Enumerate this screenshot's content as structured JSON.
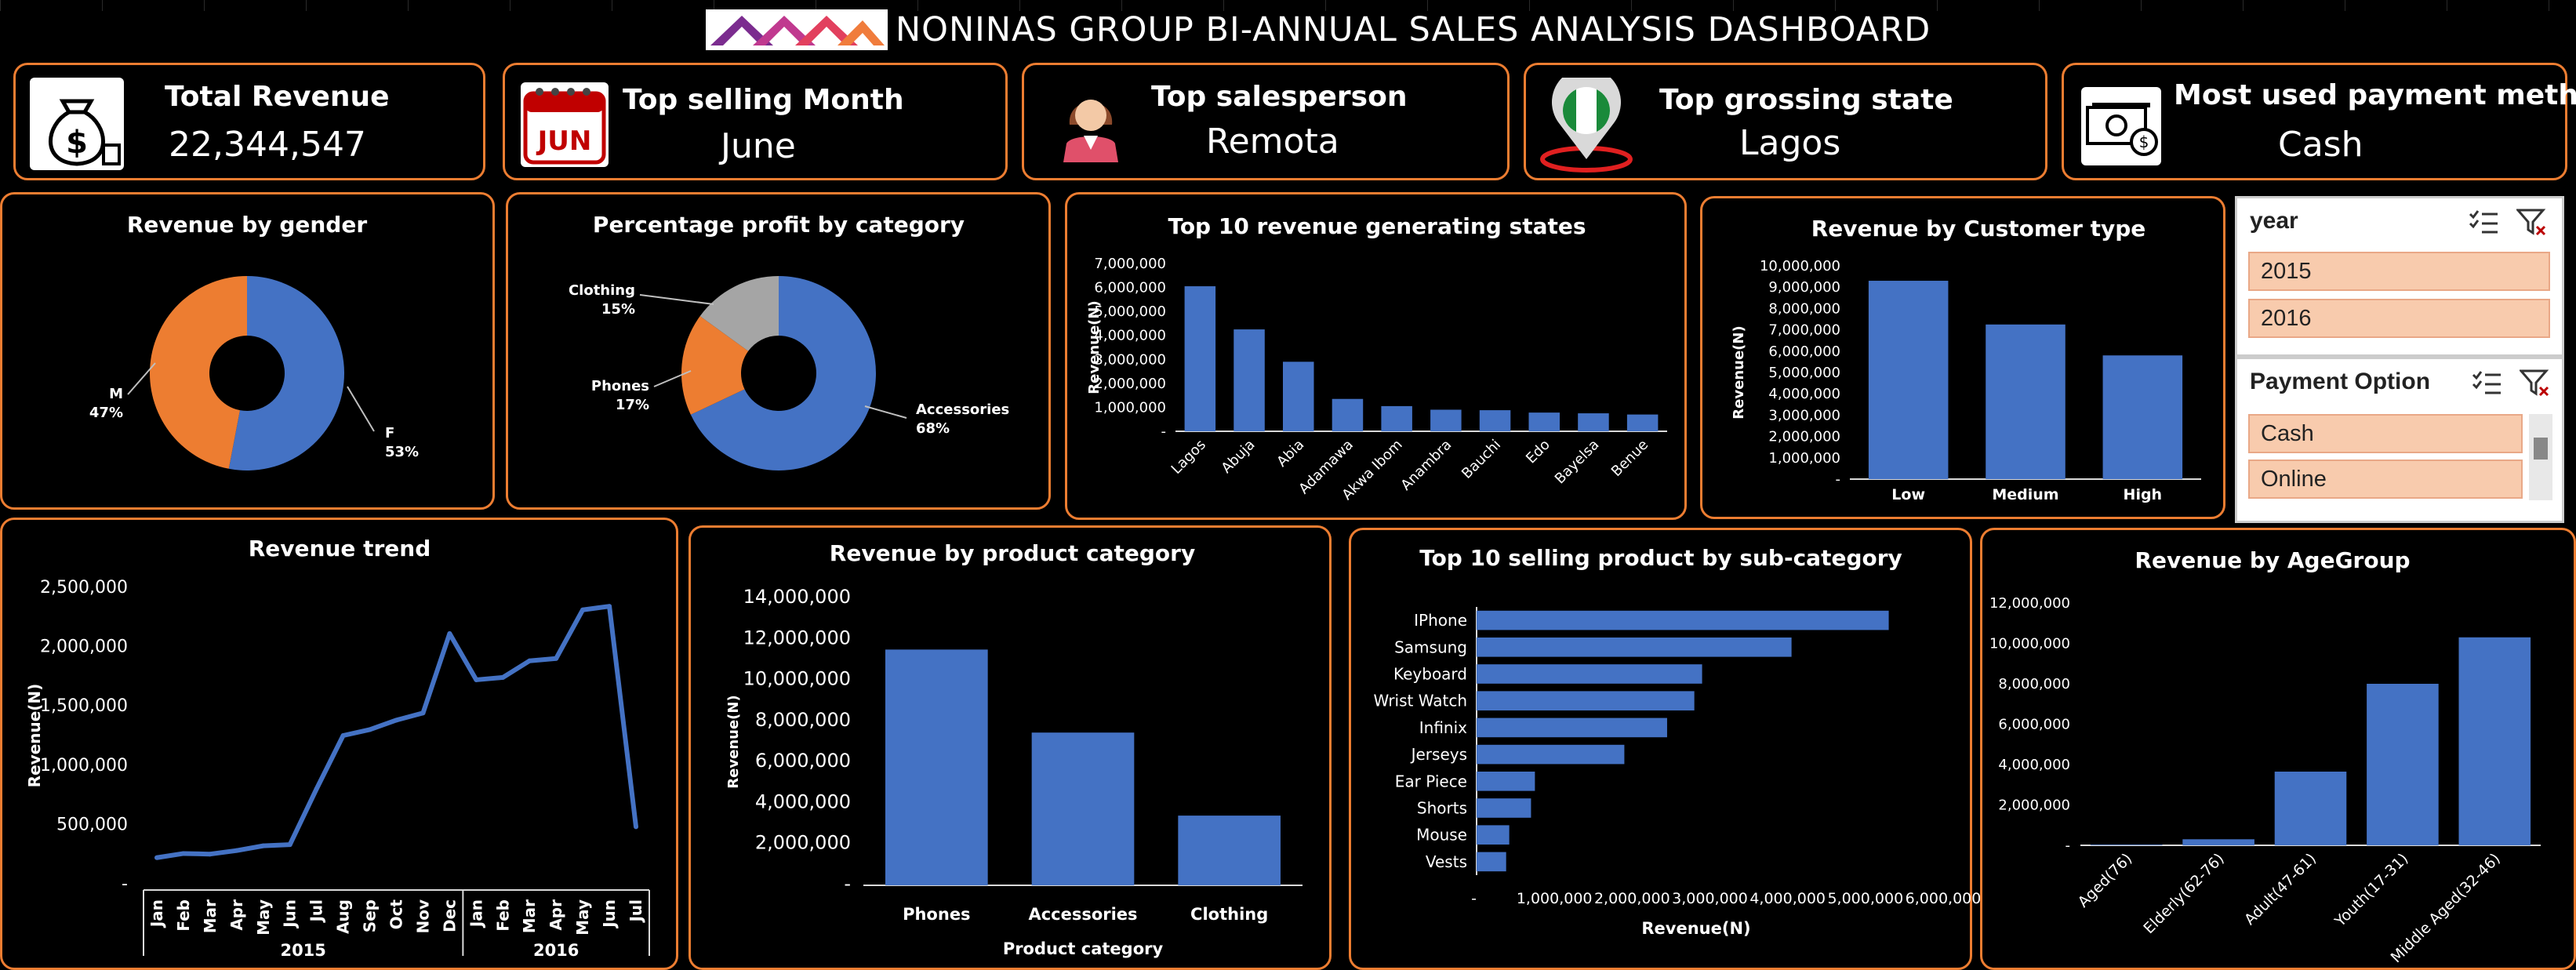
{
  "header": {
    "title": "NONINAS GROUP BI-ANNUAL SALES ANALYSIS DASHBOARD",
    "logo_icon": "brand-logo-icon"
  },
  "theme": {
    "accent": "#ed7d31",
    "bar": "#4472c4",
    "background": "#000000",
    "slicer_button": "#f8cbad"
  },
  "kpis": [
    {
      "label": "Total Revenue",
      "value": "22,344,547",
      "icon": "money-bag-icon"
    },
    {
      "label": "Top selling Month",
      "value": "June",
      "icon": "calendar-icon",
      "icon_text": "JUN"
    },
    {
      "label": "Top salesperson",
      "value": "Remota",
      "icon": "salesperson-avatar-icon"
    },
    {
      "label": "Top grossing state",
      "value": "Lagos",
      "icon": "nigeria-pin-icon"
    },
    {
      "label": "Most used payment method",
      "value": "Cash",
      "icon": "cash-icon"
    }
  ],
  "slicers": {
    "year": {
      "title": "year",
      "options": [
        "2015",
        "2016"
      ]
    },
    "payment": {
      "title": "Payment Option",
      "options": [
        "Cash",
        "Online"
      ]
    }
  },
  "chart_data": [
    {
      "id": "gender",
      "type": "pie",
      "title": "Revenue by gender",
      "slices": [
        {
          "label": "F",
          "value": 53,
          "pct": "53%",
          "color": "#4472c4"
        },
        {
          "label": "M",
          "value": 47,
          "pct": "47%",
          "color": "#ed7d31"
        }
      ]
    },
    {
      "id": "category_profit",
      "type": "pie",
      "title": "Percentage profit by category",
      "slices": [
        {
          "label": "Accessories",
          "value": 68,
          "pct": "68%",
          "color": "#4472c4"
        },
        {
          "label": "Phones",
          "value": 17,
          "pct": "17%",
          "color": "#ed7d31"
        },
        {
          "label": "Clothing",
          "value": 15,
          "pct": "15%",
          "color": "#a5a5a5"
        }
      ]
    },
    {
      "id": "states",
      "type": "bar",
      "title": "Top 10 revenue generating states",
      "ylabel": "Revenue(N)",
      "ylim": [
        0,
        7000000
      ],
      "yticks": [
        "-",
        "1,000,000",
        "2,000,000",
        "3,000,000",
        "4,000,000",
        "5,000,000",
        "6,000,000",
        "7,000,000"
      ],
      "categories": [
        "Lagos",
        "Abuja",
        "Abia",
        "Adamawa",
        "Akwa Ibom",
        "Anambra",
        "Bauchi",
        "Edo",
        "Bayelsa",
        "Benue"
      ],
      "values": [
        6050000,
        4250000,
        2900000,
        1350000,
        1050000,
        900000,
        880000,
        780000,
        750000,
        700000
      ]
    },
    {
      "id": "customer_type",
      "type": "bar",
      "title": "Revenue by Customer type",
      "ylabel": "Revenue(N)",
      "ylim": [
        0,
        10000000
      ],
      "yticks": [
        "-",
        "1,000,000",
        "2,000,000",
        "3,000,000",
        "4,000,000",
        "5,000,000",
        "6,000,000",
        "7,000,000",
        "8,000,000",
        "9,000,000",
        "10,000,000"
      ],
      "categories": [
        "Low",
        "Medium",
        "High"
      ],
      "values": [
        9300000,
        7250000,
        5800000
      ]
    },
    {
      "id": "trend",
      "type": "line",
      "title": "Revenue trend",
      "ylabel": "Revenue(N)",
      "ylim": [
        0,
        2500000
      ],
      "yticks": [
        "-",
        "500,000",
        "1,000,000",
        "1,500,000",
        "2,000,000",
        "2,500,000"
      ],
      "categories": [
        "Jan",
        "Feb",
        "Mar",
        "Apr",
        "May",
        "Jun",
        "Jul",
        "Aug",
        "Sep",
        "Oct",
        "Nov",
        "Dec",
        "Jan",
        "Feb",
        "Mar",
        "Apr",
        "May",
        "Jun",
        "Jul"
      ],
      "groups": [
        {
          "label": "2015",
          "count": 12
        },
        {
          "label": "2016",
          "count": 7
        }
      ],
      "values": [
        220000,
        255000,
        250000,
        280000,
        320000,
        330000,
        800000,
        1250000,
        1300000,
        1380000,
        1440000,
        2110000,
        1720000,
        1740000,
        1880000,
        1900000,
        2310000,
        2340000,
        480000
      ]
    },
    {
      "id": "product_category",
      "type": "bar",
      "title": "Revenue by product category",
      "xlabel": "Product category",
      "ylabel": "Revenue(N)",
      "ylim": [
        0,
        14000000
      ],
      "yticks": [
        "-",
        "2,000,000",
        "4,000,000",
        "6,000,000",
        "8,000,000",
        "10,000,000",
        "12,000,000",
        "14,000,000"
      ],
      "categories": [
        "Phones",
        "Accessories",
        "Clothing"
      ],
      "values": [
        11500000,
        7450000,
        3400000
      ]
    },
    {
      "id": "subcategory",
      "type": "bar",
      "orientation": "horizontal",
      "title": "Top 10 selling product by sub-category",
      "xlabel": "Revenue(N)",
      "xlim": [
        0,
        6000000
      ],
      "xticks": [
        "-",
        "1,000,000",
        "2,000,000",
        "3,000,000",
        "4,000,000",
        "5,000,000",
        "6,000,000"
      ],
      "categories": [
        "IPhone",
        "Samsung",
        "Keyboard",
        "Wrist Watch",
        "Infinix",
        "Jerseys",
        "Ear Piece",
        "Shorts",
        "Mouse",
        "Vests"
      ],
      "values": [
        5300000,
        4050000,
        2900000,
        2800000,
        2450000,
        1900000,
        750000,
        700000,
        420000,
        380000
      ]
    },
    {
      "id": "agegroup",
      "type": "bar",
      "title": "Revenue  by AgeGroup",
      "ylim": [
        0,
        12000000
      ],
      "yticks": [
        "-",
        "2,000,000",
        "4,000,000",
        "6,000,000",
        "8,000,000",
        "10,000,000",
        "12,000,000"
      ],
      "categories": [
        "Aged(76)",
        "Elderly(62-76)",
        "Adult(47-61)",
        "Youth(17-31)",
        "Middle Aged(32-46)"
      ],
      "values": [
        30000,
        300000,
        3650000,
        8000000,
        10300000
      ]
    }
  ]
}
